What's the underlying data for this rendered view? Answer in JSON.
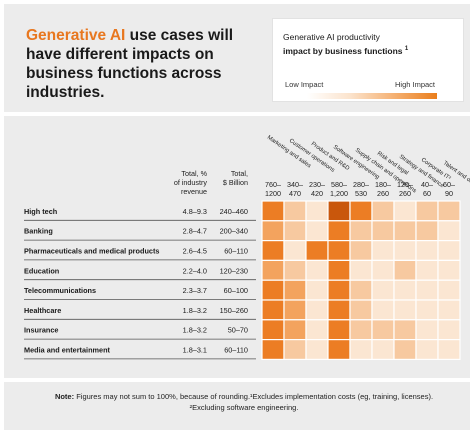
{
  "header": {
    "title_accent": "Generative AI",
    "title_rest": " use cases will have different impacts on business functions across industries."
  },
  "legend": {
    "title_line1": "Generative AI productivity",
    "title_line2": "impact by business functions",
    "title_sup": "1",
    "low_label": "Low Impact",
    "high_label": "High Impact"
  },
  "chart_data": {
    "type": "heatmap",
    "col_header_total_pct": "Total, % of industry revenue",
    "col_header_total_usd": "Total, $ Billion",
    "functions": [
      {
        "name": "Marketing and sales",
        "range": "760–1200"
      },
      {
        "name": "Customer operations",
        "range": "340–470"
      },
      {
        "name": "Product and R&D",
        "range": "230–420"
      },
      {
        "name": "Software engineering",
        "range": "580–1,200"
      },
      {
        "name": "Supply chain and operations",
        "range": "280–530"
      },
      {
        "name": "Risk and legal",
        "range": "180–260"
      },
      {
        "name": "Strategy and finance",
        "range": "120–260"
      },
      {
        "name": "Corporate IT²",
        "range": "40–60"
      },
      {
        "name": "Talent and organization",
        "range": "60–90"
      }
    ],
    "industries": [
      {
        "name": "High tech",
        "pct": "4.8–9.3",
        "usd": "240–460",
        "levels": [
          4,
          2,
          1,
          5,
          4,
          2,
          1,
          2,
          2
        ]
      },
      {
        "name": "Banking",
        "pct": "2.8–4.7",
        "usd": "200–340",
        "levels": [
          3,
          2,
          1,
          4,
          2,
          2,
          2,
          2,
          1
        ]
      },
      {
        "name": "Pharmaceuticals and medical products",
        "pct": "2.6–4.5",
        "usd": "60–110",
        "levels": [
          4,
          1,
          4,
          4,
          2,
          1,
          1,
          1,
          1
        ]
      },
      {
        "name": "Education",
        "pct": "2.2–4.0",
        "usd": "120–230",
        "levels": [
          3,
          2,
          1,
          4,
          1,
          1,
          2,
          1,
          1
        ]
      },
      {
        "name": "Telecommunications",
        "pct": "2.3–3.7",
        "usd": "60–100",
        "levels": [
          4,
          3,
          1,
          4,
          2,
          1,
          1,
          1,
          1
        ]
      },
      {
        "name": "Healthcare",
        "pct": "1.8–3.2",
        "usd": "150–260",
        "levels": [
          4,
          3,
          1,
          4,
          2,
          1,
          1,
          1,
          1
        ]
      },
      {
        "name": "Insurance",
        "pct": "1.8–3.2",
        "usd": "50–70",
        "levels": [
          4,
          3,
          1,
          4,
          2,
          2,
          2,
          1,
          1
        ]
      },
      {
        "name": "Media and entertainment",
        "pct": "1.8–3.1",
        "usd": "60–110",
        "levels": [
          4,
          2,
          1,
          4,
          1,
          1,
          2,
          1,
          1
        ]
      }
    ],
    "level_colors": [
      "#fbe6d2",
      "#f7c9a0",
      "#f3a35e",
      "#ec7d24",
      "#c9570c"
    ],
    "grid": true
  },
  "note": {
    "label": "Note:",
    "text": " Figures may not sum to 100%, because of rounding.¹Excludes implementation costs (eg, training, licenses). ²Excluding software engineering."
  }
}
